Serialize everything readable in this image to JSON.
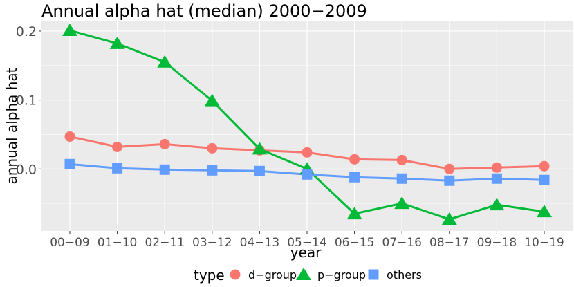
{
  "chart_data": {
    "type": "line",
    "title": "Annual alpha hat (median) 2000−2009",
    "xlabel": "year",
    "ylabel": "annual alpha hat",
    "categories": [
      "00−09",
      "01−10",
      "02−11",
      "03−12",
      "04−13",
      "05−14",
      "06−15",
      "07−16",
      "08−17",
      "09−18",
      "10−19"
    ],
    "yticks": [
      0.0,
      0.1,
      0.2
    ],
    "ytick_labels": [
      "0.0",
      "0.1",
      "0.2"
    ],
    "ylim": [
      -0.09,
      0.214
    ],
    "grid": true,
    "legend": {
      "title": "type",
      "position": "bottom"
    },
    "series": [
      {
        "name": "d−group",
        "color": "#F8766D",
        "marker": "circle",
        "values": [
          0.047,
          0.032,
          0.036,
          0.03,
          0.027,
          0.024,
          0.014,
          0.013,
          0.0,
          0.002,
          0.004
        ]
      },
      {
        "name": "p−group",
        "color": "#00BA38",
        "marker": "triangle",
        "values": [
          0.201,
          0.182,
          0.155,
          0.099,
          0.029,
          0.0,
          -0.065,
          -0.05,
          -0.073,
          -0.052,
          -0.062
        ]
      },
      {
        "name": "others",
        "color": "#619CFF",
        "marker": "square",
        "values": [
          0.007,
          0.001,
          -0.001,
          -0.002,
          -0.003,
          -0.008,
          -0.012,
          -0.014,
          -0.017,
          -0.014,
          -0.016
        ]
      }
    ]
  }
}
